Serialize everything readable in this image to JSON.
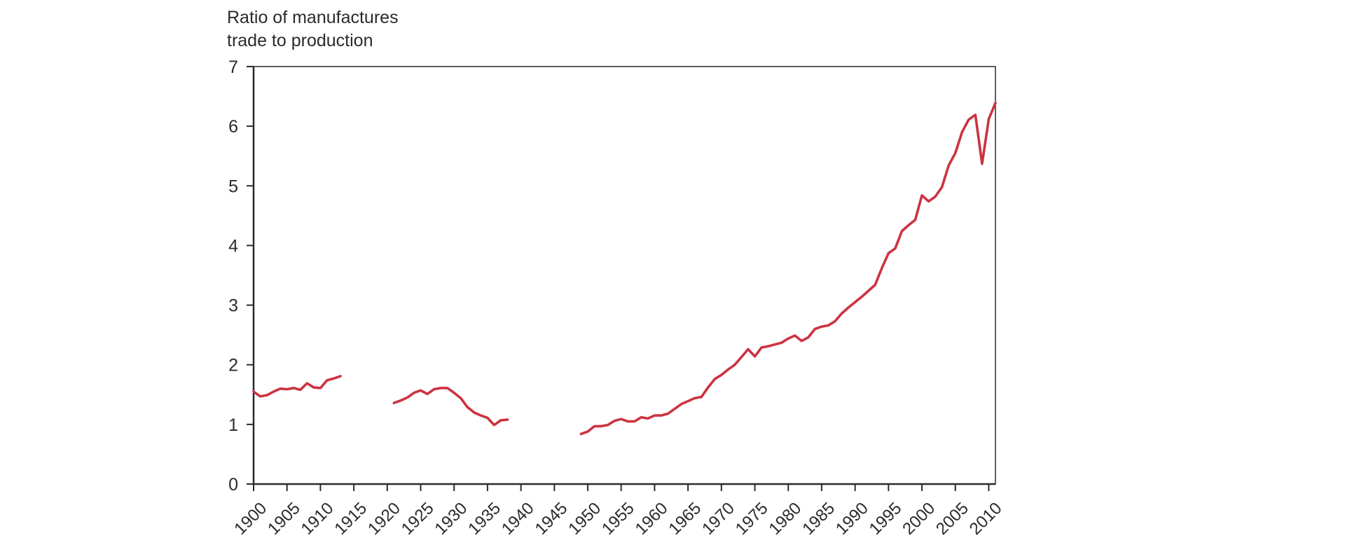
{
  "chart_data": {
    "type": "line",
    "title": "",
    "ylabel_lines": [
      "Ratio of manufactures",
      "trade to production"
    ],
    "xlabel": "",
    "xlim": [
      1900,
      2011
    ],
    "ylim": [
      0,
      7
    ],
    "yticks": [
      0,
      1,
      2,
      3,
      4,
      5,
      6,
      7
    ],
    "xticks": [
      1900,
      1905,
      1910,
      1915,
      1920,
      1925,
      1930,
      1935,
      1940,
      1945,
      1950,
      1955,
      1960,
      1965,
      1970,
      1975,
      1980,
      1985,
      1990,
      1995,
      2000,
      2005,
      2010
    ],
    "grid": false,
    "line_color": "#cc3340",
    "series": [
      {
        "segments": [
          {
            "x": [
              1900,
              1901,
              1902,
              1903,
              1904,
              1905,
              1906,
              1907,
              1908,
              1909,
              1910,
              1911,
              1912,
              1913
            ],
            "y": [
              1.55,
              1.47,
              1.49,
              1.55,
              1.6,
              1.59,
              1.61,
              1.58,
              1.69,
              1.62,
              1.61,
              1.74,
              1.77,
              1.81
            ]
          },
          {
            "x": [
              1921,
              1922,
              1923,
              1924,
              1925,
              1926,
              1927,
              1928,
              1929,
              1930,
              1931,
              1932,
              1933,
              1934,
              1935,
              1936,
              1937,
              1938
            ],
            "y": [
              1.36,
              1.4,
              1.45,
              1.53,
              1.57,
              1.51,
              1.59,
              1.61,
              1.61,
              1.53,
              1.44,
              1.29,
              1.2,
              1.15,
              1.11,
              0.99,
              1.07,
              1.08
            ]
          },
          {
            "x": [
              1949,
              1950,
              1951,
              1952,
              1953,
              1954,
              1955,
              1956,
              1957,
              1958,
              1959,
              1960,
              1961,
              1962,
              1963,
              1964,
              1965,
              1966,
              1967,
              1968,
              1969,
              1970,
              1971,
              1972,
              1973,
              1974,
              1975,
              1976,
              1977,
              1978,
              1979,
              1980,
              1981,
              1982,
              1983,
              1984,
              1985,
              1986,
              1987,
              1988,
              1989,
              1990,
              1991,
              1992,
              1993,
              1994,
              1995,
              1996,
              1997,
              1998,
              1999,
              2000,
              2001,
              2002,
              2003,
              2004,
              2005,
              2006,
              2007,
              2008,
              2009,
              2010,
              2011
            ],
            "y": [
              0.84,
              0.88,
              0.97,
              0.97,
              0.99,
              1.06,
              1.09,
              1.05,
              1.05,
              1.12,
              1.1,
              1.15,
              1.15,
              1.18,
              1.26,
              1.34,
              1.39,
              1.44,
              1.46,
              1.62,
              1.76,
              1.83,
              1.92,
              2.0,
              2.13,
              2.26,
              2.14,
              2.29,
              2.31,
              2.34,
              2.37,
              2.44,
              2.49,
              2.4,
              2.46,
              2.6,
              2.64,
              2.66,
              2.73,
              2.86,
              2.96,
              3.05,
              3.14,
              3.24,
              3.34,
              3.62,
              3.87,
              3.95,
              4.24,
              4.34,
              4.43,
              4.84,
              4.74,
              4.82,
              4.98,
              5.34,
              5.55,
              5.9,
              6.11,
              6.19,
              5.37,
              6.12,
              6.39
            ]
          }
        ]
      }
    ]
  }
}
